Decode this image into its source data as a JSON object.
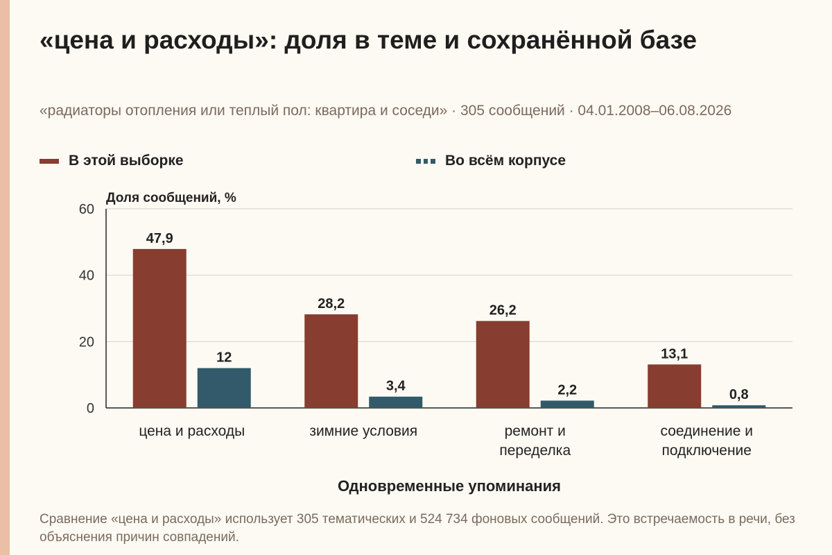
{
  "title": "«цена и расходы»: доля в теме и сохранённой базе",
  "subtitle": "«радиаторы отопления или теплый пол: квартира и соседи» · 305 сообщений · 04.01.2008–06.08.2026",
  "footnote": "Сравнение «цена и расходы» использует 305 тематических и 524 734 фоновых сообщений. Это встречаемость в речи, без объяснения причин совпадений.",
  "colors": {
    "series_sample": "#873d2f",
    "series_corpus": "#325a6b",
    "accent_strip": "#ebbfa5"
  },
  "chart_data": {
    "type": "bar",
    "ylabel": "Доля сообщений, %",
    "xlabel": "Одновременные упоминания",
    "ylim": [
      0,
      60
    ],
    "yticks": [
      0,
      20,
      40,
      60
    ],
    "grid": true,
    "legend_position": "top",
    "categories": [
      [
        "цена и расходы"
      ],
      [
        "зимние условия"
      ],
      [
        "ремонт и",
        "переделка"
      ],
      [
        "соединение и",
        "подключение"
      ]
    ],
    "series": [
      {
        "name": "В этой выборке",
        "values": [
          47.9,
          28.2,
          26.2,
          13.1
        ],
        "labels": [
          "47,9",
          "28,2",
          "26,2",
          "13,1"
        ]
      },
      {
        "name": "Во всём корпусе",
        "values": [
          12,
          3.4,
          2.2,
          0.8
        ],
        "labels": [
          "12",
          "3,4",
          "2,2",
          "0,8"
        ]
      }
    ]
  }
}
